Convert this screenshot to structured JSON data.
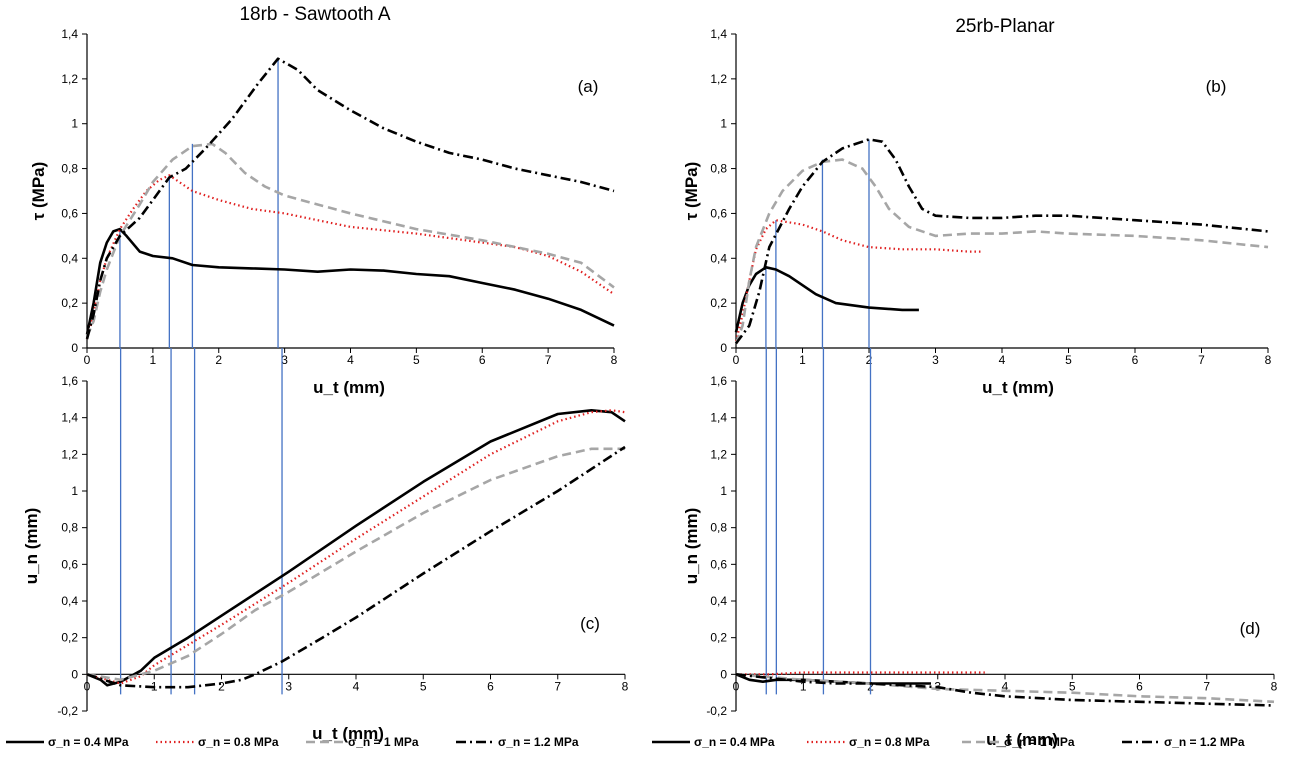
{
  "figure": {
    "titles": [
      "18rb - Sawtooth A",
      "25rb-Planar"
    ],
    "legend": [
      {
        "label": "σ_n = 0.4 MPa",
        "color": "#000000",
        "style": "solid"
      },
      {
        "label": "σ_n = 0.8 MPa",
        "color": "#e02020",
        "style": "dotted"
      },
      {
        "label": "σ_n = 1 MPa",
        "color": "#a6a6a6",
        "style": "dashed"
      },
      {
        "label": "σ_n = 1.2 MPa",
        "color": "#000000",
        "style": "dashdot"
      }
    ],
    "vline_color": "#4472c4"
  },
  "chart_data": [
    {
      "id": "a",
      "type": "line",
      "title": "18rb - Sawtooth A",
      "tag": "(a)",
      "xlabel": "u_t (mm)",
      "ylabel": "τ (MPa)",
      "xlim": [
        0,
        8
      ],
      "ylim": [
        0,
        1.4
      ],
      "xticks": [
        "0",
        "1",
        "2",
        "3",
        "4",
        "5",
        "6",
        "7",
        "8"
      ],
      "yticks": [
        "0",
        "0,2",
        "0,4",
        "0,6",
        "0,8",
        "1",
        "1,2",
        "1,4"
      ],
      "grid": false,
      "peak_lines": [
        0.5,
        1.25,
        1.6,
        2.9
      ],
      "series": [
        {
          "name": "σ_n = 0.4 MPa",
          "x": [
            0,
            0.1,
            0.2,
            0.3,
            0.4,
            0.5,
            0.6,
            0.8,
            1,
            1.3,
            1.6,
            2,
            2.5,
            3,
            3.5,
            4,
            4.5,
            5,
            5.5,
            6,
            6.5,
            7,
            7.5,
            8
          ],
          "y": [
            0.06,
            0.2,
            0.38,
            0.47,
            0.52,
            0.53,
            0.5,
            0.43,
            0.41,
            0.4,
            0.37,
            0.36,
            0.355,
            0.35,
            0.34,
            0.35,
            0.345,
            0.33,
            0.32,
            0.29,
            0.26,
            0.22,
            0.17,
            0.1
          ]
        },
        {
          "name": "σ_n = 0.8 MPa",
          "x": [
            0,
            0.1,
            0.2,
            0.3,
            0.5,
            0.7,
            0.9,
            1.1,
            1.25,
            1.4,
            1.6,
            2,
            2.5,
            3,
            3.5,
            4,
            5,
            6,
            6.5,
            7,
            7.5,
            8
          ],
          "y": [
            0.04,
            0.15,
            0.3,
            0.4,
            0.53,
            0.62,
            0.7,
            0.75,
            0.77,
            0.74,
            0.7,
            0.66,
            0.62,
            0.6,
            0.57,
            0.54,
            0.51,
            0.47,
            0.45,
            0.41,
            0.34,
            0.24
          ]
        },
        {
          "name": "σ_n = 1 MPa",
          "x": [
            0,
            0.1,
            0.2,
            0.3,
            0.5,
            0.8,
            1,
            1.3,
            1.6,
            1.9,
            2.1,
            2.4,
            2.7,
            3,
            3.5,
            4,
            5,
            6,
            7,
            7.5,
            8
          ],
          "y": [
            0.05,
            0.12,
            0.25,
            0.35,
            0.5,
            0.64,
            0.74,
            0.84,
            0.9,
            0.91,
            0.87,
            0.78,
            0.72,
            0.68,
            0.64,
            0.6,
            0.53,
            0.48,
            0.42,
            0.38,
            0.27
          ]
        },
        {
          "name": "σ_n = 1.2 MPa",
          "x": [
            0,
            0.1,
            0.2,
            0.3,
            0.5,
            0.8,
            1,
            1.25,
            1.5,
            1.8,
            2.2,
            2.6,
            2.9,
            3.2,
            3.5,
            4,
            4.5,
            5,
            5.5,
            6,
            6.5,
            7,
            7.5,
            8
          ],
          "y": [
            0.04,
            0.15,
            0.3,
            0.4,
            0.5,
            0.58,
            0.66,
            0.76,
            0.8,
            0.89,
            1.02,
            1.18,
            1.29,
            1.24,
            1.15,
            1.06,
            0.98,
            0.92,
            0.87,
            0.84,
            0.8,
            0.77,
            0.74,
            0.7
          ]
        }
      ]
    },
    {
      "id": "b",
      "type": "line",
      "title": "25rb-Planar",
      "tag": "(b)",
      "xlabel": "u_t (mm)",
      "ylabel": "τ (MPa)",
      "xlim": [
        0,
        8
      ],
      "ylim": [
        0,
        1.4
      ],
      "xticks": [
        "0",
        "1",
        "2",
        "3",
        "4",
        "5",
        "6",
        "7",
        "8"
      ],
      "yticks": [
        "0",
        "0,2",
        "0,4",
        "0,6",
        "0,8",
        "1",
        "1,2",
        "1,4"
      ],
      "grid": false,
      "peak_lines": [
        0.45,
        0.6,
        1.3,
        2.0
      ],
      "series": [
        {
          "name": "σ_n = 0.4 MPa",
          "x": [
            0,
            0.1,
            0.2,
            0.3,
            0.45,
            0.6,
            0.8,
            1,
            1.2,
            1.5,
            2,
            2.5,
            2.75
          ],
          "y": [
            0.07,
            0.2,
            0.28,
            0.33,
            0.36,
            0.35,
            0.32,
            0.28,
            0.24,
            0.2,
            0.18,
            0.17,
            0.17
          ]
        },
        {
          "name": "σ_n = 0.8 MPa",
          "x": [
            0,
            0.1,
            0.2,
            0.3,
            0.45,
            0.6,
            0.8,
            1,
            1.3,
            1.6,
            2,
            2.5,
            3,
            3.5,
            3.7
          ],
          "y": [
            0.03,
            0.15,
            0.3,
            0.44,
            0.53,
            0.57,
            0.56,
            0.55,
            0.52,
            0.48,
            0.45,
            0.44,
            0.44,
            0.43,
            0.43
          ]
        },
        {
          "name": "σ_n = 1 MPa",
          "x": [
            0,
            0.1,
            0.2,
            0.3,
            0.5,
            0.7,
            1,
            1.3,
            1.6,
            1.9,
            2.1,
            2.3,
            2.6,
            3,
            3.5,
            4,
            4.5,
            5,
            6,
            7,
            8
          ],
          "y": [
            0.02,
            0.1,
            0.3,
            0.45,
            0.6,
            0.7,
            0.79,
            0.83,
            0.84,
            0.8,
            0.72,
            0.62,
            0.54,
            0.5,
            0.51,
            0.51,
            0.52,
            0.51,
            0.5,
            0.48,
            0.45
          ]
        },
        {
          "name": "σ_n = 1.2 MPa",
          "x": [
            0,
            0.2,
            0.35,
            0.5,
            0.8,
            1,
            1.3,
            1.6,
            1.8,
            2,
            2.2,
            2.4,
            2.6,
            2.8,
            3,
            3.5,
            4,
            4.5,
            5,
            6,
            7,
            8
          ],
          "y": [
            0.02,
            0.1,
            0.25,
            0.45,
            0.62,
            0.72,
            0.83,
            0.89,
            0.91,
            0.93,
            0.92,
            0.84,
            0.72,
            0.62,
            0.59,
            0.58,
            0.58,
            0.59,
            0.59,
            0.57,
            0.55,
            0.52
          ]
        }
      ]
    },
    {
      "id": "c",
      "type": "line",
      "tag": "(c)",
      "xlabel": "u_t (mm)",
      "ylabel": "u_n (mm)",
      "xlim": [
        0,
        8
      ],
      "ylim": [
        -0.2,
        1.6
      ],
      "xticks": [
        "0",
        "1",
        "2",
        "3",
        "4",
        "5",
        "6",
        "7",
        "8"
      ],
      "yticks": [
        "-0,2",
        "0",
        "0,2",
        "0,4",
        "0,6",
        "0,8",
        "1",
        "1,2",
        "1,4",
        "1,6"
      ],
      "grid": false,
      "peak_lines": [
        0.5,
        1.25,
        1.6,
        2.9
      ],
      "series": [
        {
          "name": "σ_n = 0.4 MPa",
          "x": [
            0,
            0.2,
            0.3,
            0.5,
            0.8,
            1,
            1.5,
            2,
            3,
            4,
            5,
            6,
            7,
            7.5,
            7.8,
            8
          ],
          "y": [
            0,
            -0.03,
            -0.06,
            -0.04,
            0.02,
            0.09,
            0.2,
            0.32,
            0.56,
            0.81,
            1.05,
            1.27,
            1.42,
            1.44,
            1.43,
            1.38
          ]
        },
        {
          "name": "σ_n = 0.8 MPa",
          "x": [
            0,
            0.3,
            0.5,
            0.8,
            1,
            1.5,
            2,
            3,
            4,
            5,
            6,
            7,
            7.5,
            7.8,
            8
          ],
          "y": [
            0,
            -0.03,
            -0.05,
            -0.01,
            0.05,
            0.16,
            0.27,
            0.5,
            0.74,
            0.97,
            1.2,
            1.38,
            1.43,
            1.44,
            1.43
          ]
        },
        {
          "name": "σ_n = 1 MPa",
          "x": [
            0,
            0.5,
            1,
            1.5,
            2,
            2.5,
            3,
            4,
            5,
            6,
            7,
            7.5,
            8
          ],
          "y": [
            0,
            -0.03,
            0.02,
            0.1,
            0.22,
            0.35,
            0.45,
            0.67,
            0.88,
            1.06,
            1.19,
            1.23,
            1.23
          ]
        },
        {
          "name": "σ_n = 1.2 MPa",
          "x": [
            0,
            0.5,
            1,
            1.5,
            2,
            2.3,
            2.5,
            2.9,
            3.5,
            4,
            5,
            6,
            7,
            8
          ],
          "y": [
            0,
            -0.06,
            -0.07,
            -0.07,
            -0.05,
            -0.03,
            0.0,
            0.07,
            0.2,
            0.31,
            0.55,
            0.78,
            1.0,
            1.24
          ]
        }
      ]
    },
    {
      "id": "d",
      "type": "line",
      "tag": "(d)",
      "xlabel": "u_t (mm)",
      "ylabel": "u_n (mm)",
      "xlim": [
        0,
        8
      ],
      "ylim": [
        -0.2,
        1.6
      ],
      "xticks": [
        "0",
        "1",
        "2",
        "3",
        "4",
        "5",
        "6",
        "7",
        "8"
      ],
      "yticks": [
        "-0,2",
        "0",
        "0,2",
        "0,4",
        "0,6",
        "0,8",
        "1",
        "1,2",
        "1,4",
        "1,6"
      ],
      "grid": false,
      "peak_lines": [
        0.45,
        0.6,
        1.3,
        2.0
      ],
      "series": [
        {
          "name": "σ_n = 0.4 MPa",
          "x": [
            0,
            0.2,
            0.4,
            0.6,
            1,
            1.5,
            2,
            2.5,
            2.9
          ],
          "y": [
            0,
            -0.03,
            -0.04,
            -0.03,
            -0.03,
            -0.04,
            -0.05,
            -0.05,
            -0.05
          ]
        },
        {
          "name": "σ_n = 0.8 MPa",
          "x": [
            0,
            0.5,
            1,
            2,
            3,
            3.7
          ],
          "y": [
            0,
            0.0,
            0.01,
            0.01,
            0.01,
            0.01
          ]
        },
        {
          "name": "σ_n = 1 MPa",
          "x": [
            0,
            1,
            2,
            3,
            4,
            5,
            6,
            7,
            8
          ],
          "y": [
            0,
            -0.03,
            -0.05,
            -0.08,
            -0.09,
            -0.1,
            -0.12,
            -0.13,
            -0.15
          ]
        },
        {
          "name": "σ_n = 1.2 MPa",
          "x": [
            0,
            1,
            1.5,
            2,
            2.5,
            3,
            3.5,
            4,
            5,
            6,
            7,
            8
          ],
          "y": [
            0,
            -0.04,
            -0.05,
            -0.05,
            -0.06,
            -0.07,
            -0.1,
            -0.12,
            -0.14,
            -0.15,
            -0.16,
            -0.17
          ]
        }
      ]
    }
  ]
}
